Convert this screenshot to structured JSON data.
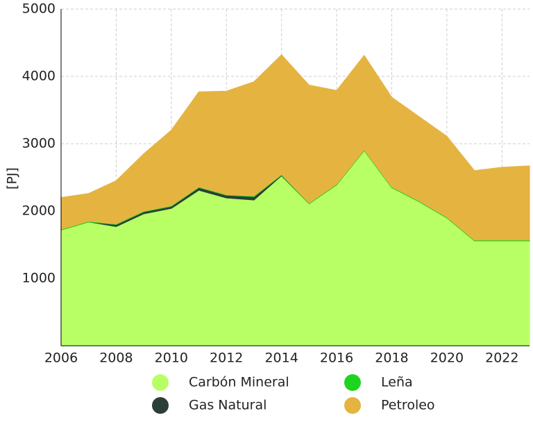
{
  "chart_data": {
    "type": "stacked_area",
    "y_label": "[PJ]",
    "x": [
      2006,
      2007,
      2008,
      2009,
      2010,
      2011,
      2012,
      2013,
      2014,
      2015,
      2016,
      2017,
      2018,
      2019,
      2020,
      2021,
      2022,
      2023
    ],
    "series": [
      {
        "name": "Carbón Mineral",
        "color": "#b8ff66",
        "values": [
          1720,
          1840,
          1770,
          1960,
          2040,
          2310,
          2195,
          2165,
          2525,
          2110,
          2390,
          2900,
          2350,
          2140,
          1900,
          1560,
          1560,
          1560
        ]
      },
      {
        "name": "Gas Natural",
        "color": "#2b3f37",
        "values": [
          0,
          0,
          30,
          30,
          30,
          40,
          40,
          50,
          10,
          0,
          0,
          0,
          0,
          0,
          0,
          0,
          0,
          0
        ]
      },
      {
        "name": "Leña",
        "color": "#1fd41f",
        "values": [
          10,
          10,
          10,
          10,
          10,
          10,
          10,
          10,
          10,
          10,
          10,
          10,
          10,
          10,
          10,
          10,
          10,
          10
        ]
      },
      {
        "name": "Petroleo",
        "color": "#e5b440",
        "values": [
          470,
          410,
          640,
          850,
          1120,
          1410,
          1535,
          1695,
          1775,
          1750,
          1390,
          1400,
          1330,
          1250,
          1200,
          1030,
          1080,
          1100
        ]
      }
    ],
    "xlim": [
      2006,
      2023
    ],
    "xticks": [
      2006,
      2008,
      2010,
      2012,
      2014,
      2016,
      2018,
      2020,
      2022
    ],
    "ylim": [
      0,
      5000
    ],
    "yticks": [
      1000,
      2000,
      3000,
      4000,
      5000
    ],
    "grid": true,
    "legend": "bottom"
  }
}
